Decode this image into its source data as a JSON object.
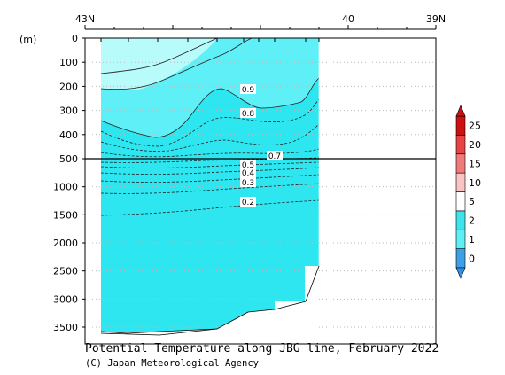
{
  "chart_data": {
    "type": "contour-section",
    "title": "Potential Temperature along JBG line, February 2022",
    "credit": "(C) Japan Meteorological Agency",
    "ylabel": "(m)",
    "top_axis_ticks": [
      "43N",
      "40",
      "39N"
    ],
    "top_axis_range_deg": [
      43,
      39
    ],
    "depth_ticks_upper": [
      0,
      100,
      200,
      300,
      400,
      500
    ],
    "depth_ticks_lower": [
      1000,
      1500,
      2000,
      2500,
      3000,
      3500
    ],
    "depth_range_upper_m": [
      0,
      500
    ],
    "depth_range_lower_m": [
      500,
      3800
    ],
    "colorbar": {
      "levels": [
        "0",
        "1",
        "2",
        "5",
        "10",
        "15",
        "20",
        "25"
      ],
      "colors": [
        "#3f9fe6",
        "#5ef0f6",
        "#3ee4ec",
        "#ffffff",
        "#f8c4c4",
        "#f07a7a",
        "#e84444",
        "#cc1111"
      ]
    },
    "contour_labels": [
      "0.9",
      "0.8",
      "0.7",
      "0.5",
      "0.4",
      "0.3",
      "0.2"
    ],
    "fill_colors": {
      "warm": "#b8fbfb",
      "mid": "#5ef0f6",
      "deep": "#2ee6f0"
    }
  }
}
